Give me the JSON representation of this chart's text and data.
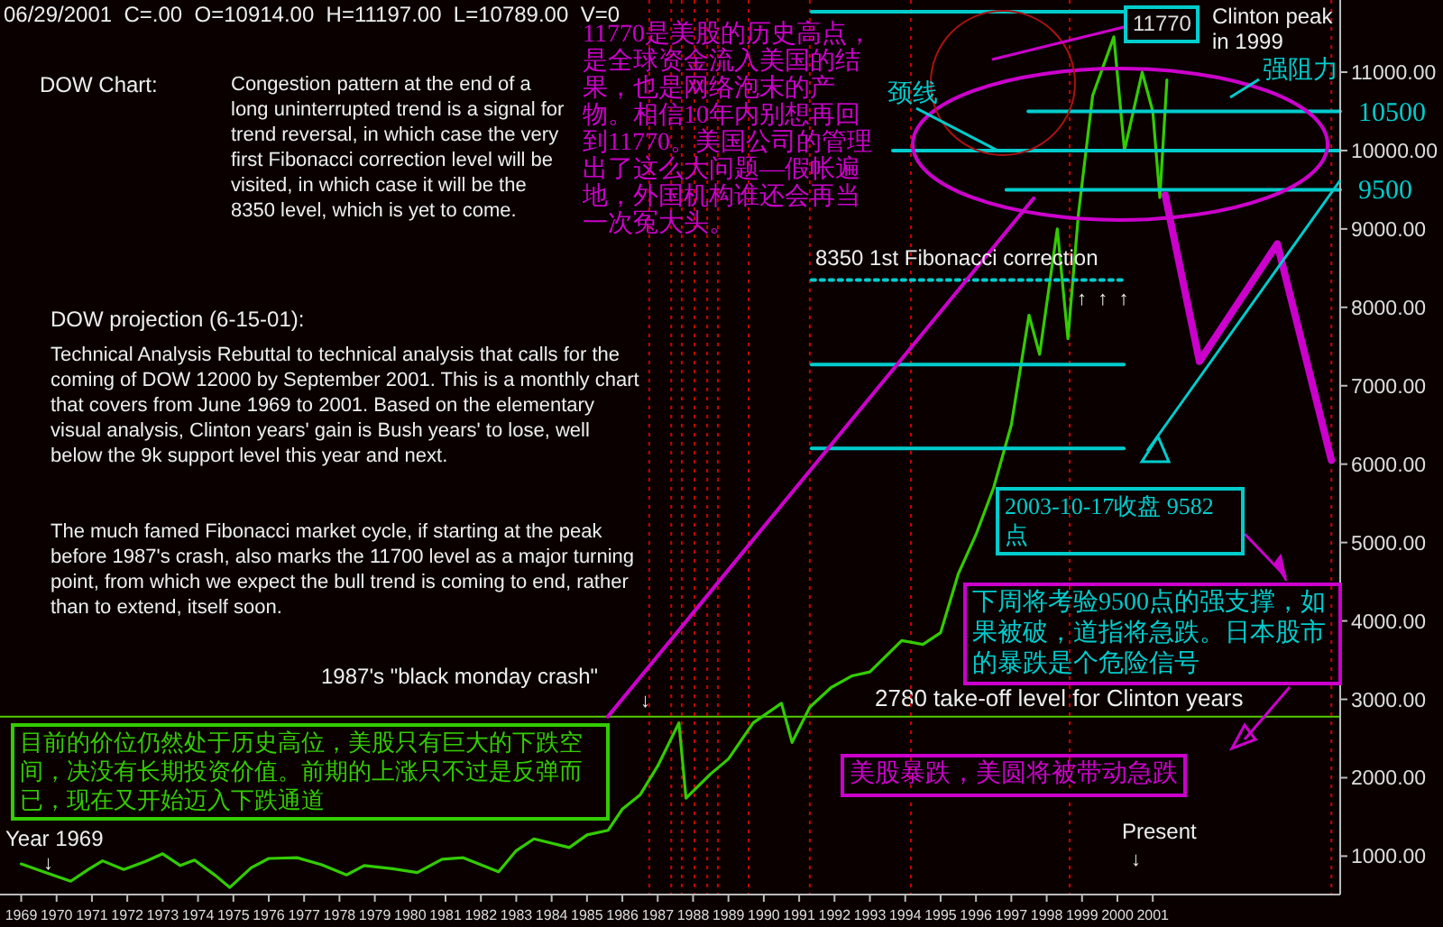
{
  "chart_data": {
    "type": "line",
    "title": "DOW Chart:",
    "subtitle": "06/29/2001  C=.00  O=10914.00  H=11197.00  L=10789.00  V=0",
    "xlim": [
      1968.4,
      2006.3
    ],
    "ylim": [
      510,
      11920
    ],
    "xticks": [
      1969,
      1970,
      1971,
      1972,
      1973,
      1974,
      1975,
      1976,
      1977,
      1978,
      1979,
      1980,
      1981,
      1982,
      1983,
      1984,
      1985,
      1986,
      1987,
      1988,
      1989,
      1990,
      1991,
      1992,
      1993,
      1994,
      1995,
      1996,
      1997,
      1998,
      1999,
      2000,
      2001
    ],
    "yticks": [
      {
        "value": 1000,
        "label": "1000.00"
      },
      {
        "value": 2000,
        "label": "2000.00"
      },
      {
        "value": 3000,
        "label": "3000.00"
      },
      {
        "value": 4000,
        "label": "4000.00"
      },
      {
        "value": 5000,
        "label": "5000.00"
      },
      {
        "value": 6000,
        "label": "6000.00"
      },
      {
        "value": 7000,
        "label": "7000.00"
      },
      {
        "value": 8000,
        "label": "8000.00"
      },
      {
        "value": 9000,
        "label": "9000.00"
      },
      {
        "value": 10000,
        "label": "10000.00"
      },
      {
        "value": 11000,
        "label": "11000.00"
      }
    ],
    "grid": false,
    "marker": "none",
    "series": [
      {
        "color": "#33cc00",
        "x": [
          1969.0,
          1969.5,
          1970.4,
          1970.9,
          1971.3,
          1971.9,
          1972.5,
          1973.0,
          1973.5,
          1973.9,
          1974.5,
          1974.9,
          1975.5,
          1976.0,
          1976.8,
          1977.5,
          1978.2,
          1978.7,
          1979.5,
          1980.2,
          1980.9,
          1981.5,
          1982.5,
          1983.0,
          1983.5,
          1984.5,
          1985.0,
          1985.6,
          1986.0,
          1986.5,
          1987.0,
          1987.6,
          1987.8,
          1988.5,
          1989.0,
          1989.7,
          1990.5,
          1990.8,
          1991.3,
          1991.9,
          1992.5,
          1993.0,
          1993.9,
          1994.5,
          1995.0,
          1995.5,
          1996.0,
          1996.5,
          1997.0,
          1997.5,
          1997.8,
          1998.3,
          1998.6,
          1998.9,
          1999.3,
          1999.9,
          2000.2,
          2000.7,
          2001.0,
          2001.2,
          2001.4
        ],
        "values": [
          900,
          820,
          680,
          830,
          940,
          830,
          930,
          1030,
          880,
          950,
          750,
          600,
          850,
          970,
          980,
          890,
          760,
          880,
          840,
          790,
          960,
          980,
          800,
          1070,
          1220,
          1110,
          1270,
          1330,
          1600,
          1780,
          2150,
          2700,
          1740,
          2050,
          2240,
          2700,
          2950,
          2450,
          2900,
          3150,
          3300,
          3350,
          3750,
          3700,
          3850,
          4600,
          5100,
          5700,
          6500,
          7900,
          7400,
          9000,
          7600,
          9200,
          10700,
          11450,
          10000,
          11000,
          10500,
          9400,
          10900
        ]
      },
      {
        "color": "#00cccc",
        "x": [
          1991.35,
          2000.18
        ],
        "values": [
          11770,
          11770
        ]
      },
      {
        "color": "#00cccc",
        "x": [
          1997.48,
          2006.3
        ],
        "values": [
          10500,
          10500
        ]
      },
      {
        "color": "#00cccc",
        "x": [
          1993.65,
          2006.3
        ],
        "values": [
          10000,
          10000
        ]
      },
      {
        "color": "#00cccc",
        "x": [
          1996.86,
          2006.3
        ],
        "values": [
          9500,
          9500
        ]
      },
      {
        "color": "#00cccc",
        "x": [
          1991.35,
          2000.18
        ],
        "values": [
          8350,
          8350
        ],
        "line_style": "dotted"
      },
      {
        "color": "#00cccc",
        "x": [
          1991.35,
          2000.18
        ],
        "values": [
          7270,
          7270
        ]
      },
      {
        "color": "#00cccc",
        "x": [
          1991.35,
          2000.18
        ],
        "values": [
          6200,
          6200
        ]
      },
      {
        "color": "#cc00cc",
        "x": [
          1985.59,
          1997.63
        ],
        "values": [
          2780,
          9390
        ]
      },
      {
        "color": "#cc00cc",
        "x": [
          2001.35,
          2002.32,
          2004.52,
          2006.05
        ],
        "values": [
          9430,
          7310,
          8810,
          6050
        ]
      }
    ],
    "ref_lines": [
      {
        "axis": "y",
        "value": 2780,
        "label": "2780 take-off level for Clinton years",
        "color": "#55cc00"
      },
      {
        "axis": "x",
        "value": 1986.76,
        "color": "#cc0000",
        "line_style": "dotted"
      },
      {
        "axis": "x",
        "value": 1987.38,
        "color": "#cc0000",
        "line_style": "dotted"
      },
      {
        "axis": "x",
        "value": 1987.68,
        "color": "#cc0000",
        "line_style": "dotted"
      },
      {
        "axis": "x",
        "value": 1988.04,
        "color": "#cc0000",
        "line_style": "dotted"
      },
      {
        "axis": "x",
        "value": 1988.4,
        "color": "#cc0000",
        "line_style": "dotted"
      },
      {
        "axis": "x",
        "value": 1988.7,
        "color": "#cc0000",
        "line_style": "dotted"
      },
      {
        "axis": "x",
        "value": 1989.57,
        "color": "#cc0000",
        "line_style": "dotted"
      },
      {
        "axis": "x",
        "value": 1991.3,
        "color": "#cc0000",
        "line_style": "dotted"
      },
      {
        "axis": "x",
        "value": 1994.16,
        "color": "#cc0000",
        "line_style": "dotted"
      },
      {
        "axis": "x",
        "value": 1998.65,
        "color": "#cc0000",
        "line_style": "dotted"
      },
      {
        "axis": "x",
        "value": 2006.05,
        "color": "#cc0000",
        "line_style": "dotted"
      }
    ],
    "annotations": [
      "Congestion pattern at the end of a long uninterrupted trend is a signal for trend reversal, in which case the very first Fibonacci correction level will be visited, in which case it will be the 8350 level, which is yet to come.",
      "DOW projection (6-15-01):",
      "Technical Analysis Rebuttal to technical analysis that calls for the coming of DOW 12000 by September 2001.  This is a monthly chart that covers from June 1969 to 2001. Based on the elementary visual analysis, Clinton years' gain is Bush years' to lose, well below the 9k support level this year and next.",
      "The much famed Fibonacci market cycle, if starting at the peak before 1987's crash, also marks the 11700 level as a major turning point, from which we expect the bull trend is coming to end, rather than to extend, itself soon.",
      "11770是美股的历史高点，是全球资金流入美国的结果，也是网络泡末的产物。相信10年内别想再回到11770。美国公司的管理出了这么大问题—假帐遍地，外国机构谁还会再当一次冤大头。",
      {
        "text": "颈线",
        "x": 1996.61,
        "y": 10000
      },
      "强阻力",
      "11770",
      "Clinton peak in 1999",
      "10500",
      "9500",
      "8350 1st Fibonacci correction",
      "↑  ↑  ↑",
      "2003-10-17收盘 9582点",
      "下周将考验9500点的强支撑，如果被破，道指将急跌。日本股市的暴跌是个危险信号",
      "美股暴跌，美圆将被带动急跌",
      "1987's \"black monday crash\"",
      "↓",
      "目前的价位仍然处于历史高位，美股只有巨大的下跌空间，决没有长期投资价值。前期的上涨只不过是反弹而已，现在又开始迈入下跌通道",
      "Year 1969",
      "↓",
      "Present",
      "↓"
    ]
  }
}
